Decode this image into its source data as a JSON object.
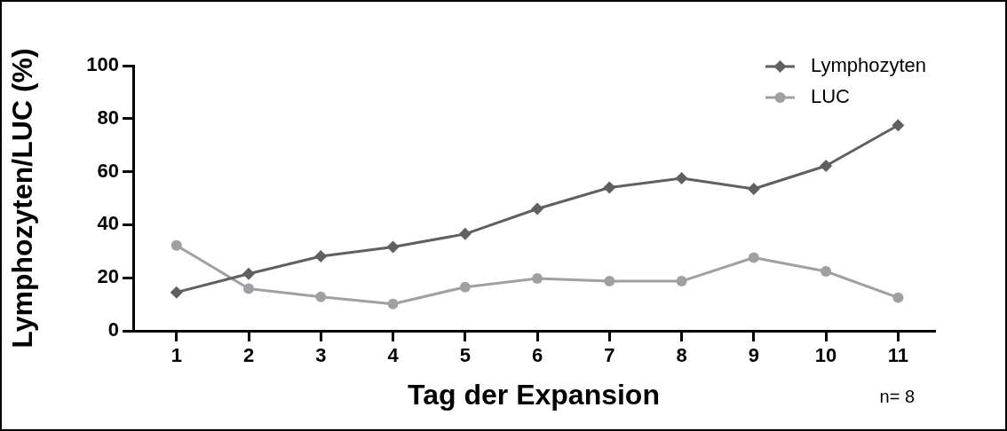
{
  "chart_data": {
    "type": "line",
    "xlabel": "Tag der Expansion",
    "ylabel": "Lymphozyten/LUC (%)",
    "x": [
      1,
      2,
      3,
      4,
      5,
      6,
      7,
      8,
      9,
      10,
      11
    ],
    "series": [
      {
        "name": "Lymphozyten",
        "color": "#606060",
        "marker": "diamond",
        "values": [
          14.5,
          21.5,
          28.1,
          31.6,
          36.5,
          46.0,
          54.0,
          57.5,
          53.5,
          62.2,
          77.5
        ]
      },
      {
        "name": "LUC",
        "color": "#a0a0a4",
        "marker": "circle",
        "values": [
          32.2,
          15.9,
          12.8,
          10.1,
          16.5,
          19.7,
          18.7,
          18.7,
          27.6,
          22.4,
          12.5
        ]
      }
    ],
    "xlim": [
      0.4,
      11.5
    ],
    "xticks": [
      1,
      2,
      3,
      4,
      5,
      6,
      7,
      8,
      9,
      10,
      11
    ],
    "ylim": [
      0,
      100
    ],
    "yticks": [
      0,
      20,
      40,
      60,
      80,
      100
    ],
    "grid": false,
    "legend": "top right",
    "line_style": "solid",
    "annotations": [
      "n= 8"
    ]
  }
}
